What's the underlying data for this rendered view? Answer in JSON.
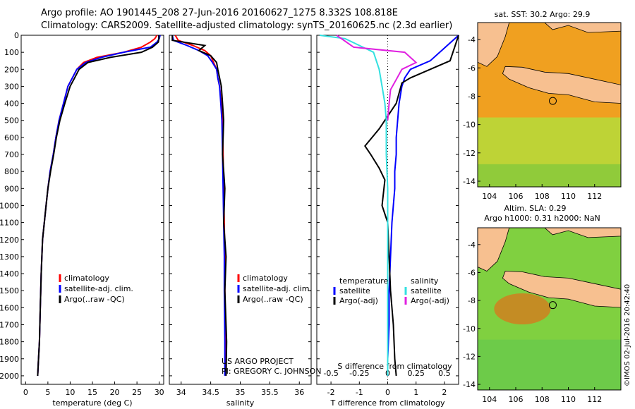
{
  "header": {
    "line1": "Argo profile: AO 1901445_208 27-Jun-2016 20160627_1275 8.332S 108.818E",
    "line2": "Climatology: CARS2009. Satellite-adjusted climatology: synTS_20160625.nc (2.3d earlier)"
  },
  "side_label": "©IMOS 02-Jul-2016 20:42:40",
  "colors": {
    "climatology": "#ff0000",
    "satellite": "#0000ff",
    "argo": "#000000",
    "sal_satellite": "#33e0e0",
    "sal_argo": "#e020e0",
    "land": "#f7c090",
    "sst": "#f0a020",
    "sla": "#80d040"
  },
  "depth_ticks": [
    0,
    100,
    200,
    300,
    400,
    500,
    600,
    700,
    800,
    900,
    1000,
    1100,
    1200,
    1300,
    1400,
    1500,
    1600,
    1700,
    1800,
    1900,
    2000
  ],
  "legend": {
    "climatology": "climatology",
    "satellite": "satellite-adj. clim.",
    "argo": "Argo(..raw -QC)"
  },
  "diff_legend": {
    "temperature": "temperature",
    "salinity": "salinity",
    "satellite": "satellite",
    "argo_adj": "Argo(-adj)"
  },
  "credit": {
    "line1": "US ARGO PROJECT",
    "line2": "PI: GREGORY C. JOHNSON"
  },
  "chart_data": [
    {
      "type": "line",
      "xlabel": "temperature (deg C)",
      "ylim": [
        2050,
        0
      ],
      "xlim": [
        -1,
        31
      ],
      "xticks": [
        0,
        5,
        10,
        15,
        20,
        25,
        30
      ],
      "series": [
        {
          "name": "climatology",
          "color": "#ff0000",
          "x": [
            29.5,
            29,
            28,
            26,
            22,
            16,
            13,
            11.5,
            10.5,
            9.5,
            8.5,
            7.5,
            6.8,
            6.2,
            5.5,
            5,
            4.6,
            4.2,
            3.8,
            3.5,
            3.3,
            3.1,
            2.9,
            2.7
          ],
          "y": [
            0,
            20,
            40,
            70,
            100,
            130,
            160,
            200,
            250,
            300,
            400,
            500,
            600,
            700,
            800,
            900,
            1000,
            1100,
            1200,
            1400,
            1600,
            1800,
            1900,
            2000
          ]
        },
        {
          "name": "satellite-adj. clim.",
          "color": "#0000ff",
          "x": [
            30.2,
            30,
            29.5,
            28,
            22,
            17,
            13.5,
            11.5,
            10.5,
            9.5,
            8.5,
            7.5,
            6.8,
            6.2,
            5.5,
            5,
            4.6,
            4.2,
            3.8,
            3.5,
            3.3,
            3.1,
            2.9,
            2.7
          ],
          "y": [
            0,
            20,
            40,
            70,
            100,
            130,
            160,
            200,
            250,
            300,
            400,
            500,
            600,
            700,
            800,
            900,
            1000,
            1100,
            1200,
            1400,
            1600,
            1800,
            1900,
            2000
          ]
        },
        {
          "name": "Argo(..raw -QC)",
          "color": "#000000",
          "x": [
            29.9,
            29.9,
            29.8,
            28.5,
            26,
            19,
            14,
            12,
            11,
            10,
            8.8,
            7.7,
            6.9,
            6.3,
            5.6,
            5,
            4.6,
            4.2,
            3.8,
            3.5,
            3.3,
            3.1,
            2.9,
            2.7
          ],
          "y": [
            0,
            20,
            40,
            70,
            100,
            130,
            160,
            200,
            250,
            300,
            400,
            500,
            600,
            700,
            800,
            900,
            1000,
            1100,
            1200,
            1400,
            1600,
            1800,
            1900,
            2000
          ]
        }
      ]
    },
    {
      "type": "line",
      "xlabel": "salinity",
      "ylim": [
        2050,
        0
      ],
      "xlim": [
        33.8,
        36.2
      ],
      "xticks": [
        34,
        34.5,
        35,
        35.5,
        36
      ],
      "xticklabels": [
        "34",
        "34.5",
        "35",
        "35.5",
        "36"
      ],
      "series": [
        {
          "name": "climatology",
          "color": "#ff0000",
          "x": [
            33.9,
            33.95,
            34.2,
            34.4,
            34.5,
            34.55,
            34.6,
            34.62,
            34.65,
            34.68,
            34.7,
            34.71,
            34.72,
            34.73,
            34.74,
            34.74,
            34.75,
            34.75
          ],
          "y": [
            0,
            30,
            60,
            90,
            120,
            160,
            200,
            250,
            300,
            400,
            500,
            700,
            900,
            1100,
            1300,
            1500,
            1800,
            2000
          ]
        },
        {
          "name": "satellite-adj. clim.",
          "color": "#0000ff",
          "x": [
            33.85,
            33.87,
            34.1,
            34.3,
            34.45,
            34.53,
            34.6,
            34.62,
            34.65,
            34.67,
            34.69,
            34.7,
            34.71,
            34.72,
            34.73,
            34.73,
            34.74,
            34.74
          ],
          "y": [
            0,
            30,
            60,
            90,
            120,
            160,
            200,
            250,
            300,
            400,
            500,
            700,
            900,
            1100,
            1300,
            1500,
            1800,
            2000
          ]
        },
        {
          "name": "Argo(..raw -QC)",
          "color": "#000000",
          "x": [
            33.85,
            33.85,
            34.4,
            34.3,
            34.5,
            34.6,
            34.62,
            34.65,
            34.68,
            34.7,
            34.72,
            34.7,
            34.74,
            34.72,
            34.76,
            34.74,
            34.77,
            34.76
          ],
          "y": [
            0,
            30,
            60,
            90,
            120,
            160,
            200,
            250,
            300,
            400,
            500,
            700,
            900,
            1100,
            1300,
            1500,
            1800,
            2000
          ]
        }
      ]
    },
    {
      "type": "line",
      "xlabel": "T difference from climatology",
      "xlabel_top": "S difference from climatology",
      "ylim": [
        2050,
        0
      ],
      "xlim": [
        -2.5,
        2.5
      ],
      "xticks": [
        -2,
        -1,
        0,
        1,
        2
      ],
      "top_ticks": [
        -0.5,
        -0.25,
        0,
        0.25,
        0.5
      ],
      "series": [
        {
          "name": "temperature satellite",
          "color": "#0000ff",
          "x": [
            2.5,
            1.5,
            0.8,
            0.6,
            0.5,
            0.4,
            0.35,
            0.3,
            0.3,
            0.25,
            0.25,
            0.2,
            0.15,
            0.1,
            0.05,
            0.05,
            0.0,
            0.0
          ],
          "y": [
            0,
            150,
            200,
            250,
            300,
            400,
            500,
            600,
            700,
            800,
            900,
            1000,
            1100,
            1300,
            1500,
            1700,
            1900,
            2000
          ]
        },
        {
          "name": "temperature Argo(-adj)",
          "color": "#000000",
          "x": [
            2.5,
            2.2,
            1.5,
            0.8,
            0.5,
            0.3,
            -0.3,
            -0.8,
            -0.6,
            -0.3,
            -0.1,
            -0.2,
            0.0,
            0.05,
            0.1,
            0.2,
            0.25,
            0.3
          ],
          "y": [
            0,
            150,
            200,
            250,
            280,
            400,
            550,
            650,
            700,
            780,
            850,
            1000,
            1100,
            1300,
            1500,
            1700,
            1900,
            2000
          ]
        },
        {
          "name": "salinity satellite",
          "color": "#33e0e0",
          "x": [
            -2.4,
            -1.5,
            -0.5,
            -0.3,
            -0.2,
            -0.1,
            -0.05,
            -0.05,
            0.0,
            0.0,
            0.0,
            0.0
          ],
          "y": [
            0,
            20,
            100,
            200,
            300,
            400,
            500,
            700,
            900,
            1200,
            1600,
            2000
          ]
        },
        {
          "name": "salinity Argo(-adj)",
          "color": "#e020e0",
          "x": [
            -1.8,
            -1.2,
            0.6,
            1.0,
            0.5,
            0.3,
            0.1,
            0.05,
            0.0
          ],
          "y": [
            0,
            70,
            100,
            160,
            200,
            260,
            320,
            400,
            500
          ]
        }
      ]
    }
  ],
  "maps": [
    {
      "title": "sat. SST: 30.2 Argo: 29.9",
      "kind": "sst",
      "xticks": [
        "104",
        "106",
        "108",
        "110",
        "112"
      ],
      "yticks": [
        "-4",
        "-6",
        "-8",
        "-10",
        "-12",
        "-14"
      ]
    },
    {
      "title1": "Altim. SLA: 0.29",
      "title2": "Argo h1000: 0.31 h2000: NaN",
      "kind": "sla",
      "xticks": [
        "104",
        "106",
        "108",
        "110",
        "112"
      ],
      "yticks": [
        "-4",
        "-6",
        "-8",
        "-10",
        "-12",
        "-14"
      ]
    }
  ]
}
